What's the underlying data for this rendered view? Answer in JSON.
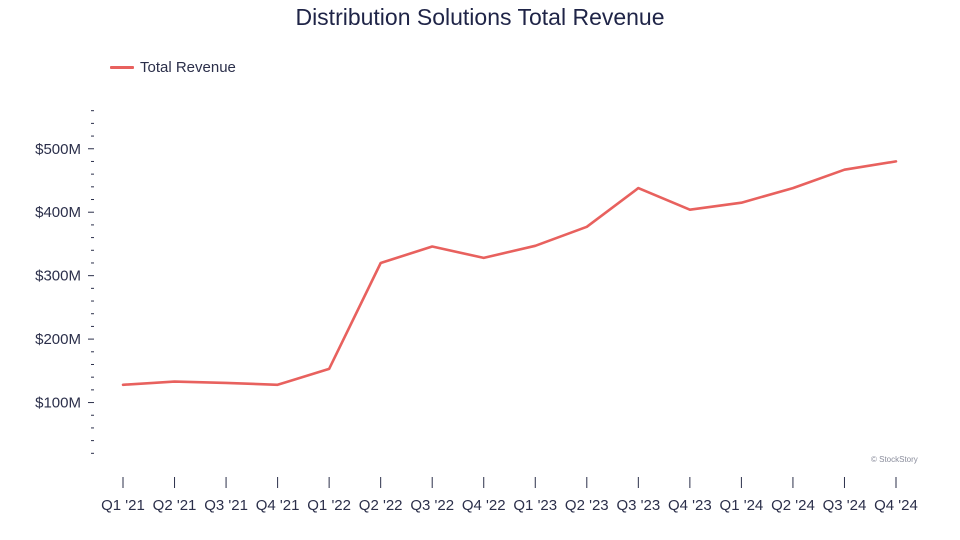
{
  "chart_data": {
    "type": "line",
    "title": "Distribution Solutions Total Revenue",
    "xlabel": "",
    "ylabel": "",
    "categories": [
      "Q1 '21",
      "Q2 '21",
      "Q3 '21",
      "Q4 '21",
      "Q1 '22",
      "Q2 '22",
      "Q3 '22",
      "Q4 '22",
      "Q1 '23",
      "Q2 '23",
      "Q3 '23",
      "Q4 '23",
      "Q1 '24",
      "Q2 '24",
      "Q3 '24",
      "Q4 '24"
    ],
    "series": [
      {
        "name": "Total Revenue",
        "color": "#e8615e",
        "values": [
          128,
          133,
          131,
          128,
          153,
          320,
          346,
          328,
          347,
          377,
          438,
          404,
          415,
          438,
          467,
          480
        ]
      }
    ],
    "yticks": [
      100,
      200,
      300,
      400,
      500
    ],
    "ytick_labels": [
      "$100M",
      "$200M",
      "$300M",
      "$400M",
      "$500M"
    ],
    "ylim": [
      0,
      580
    ],
    "grid": false,
    "legend_position": "top-left"
  },
  "watermark": "© StockStory"
}
